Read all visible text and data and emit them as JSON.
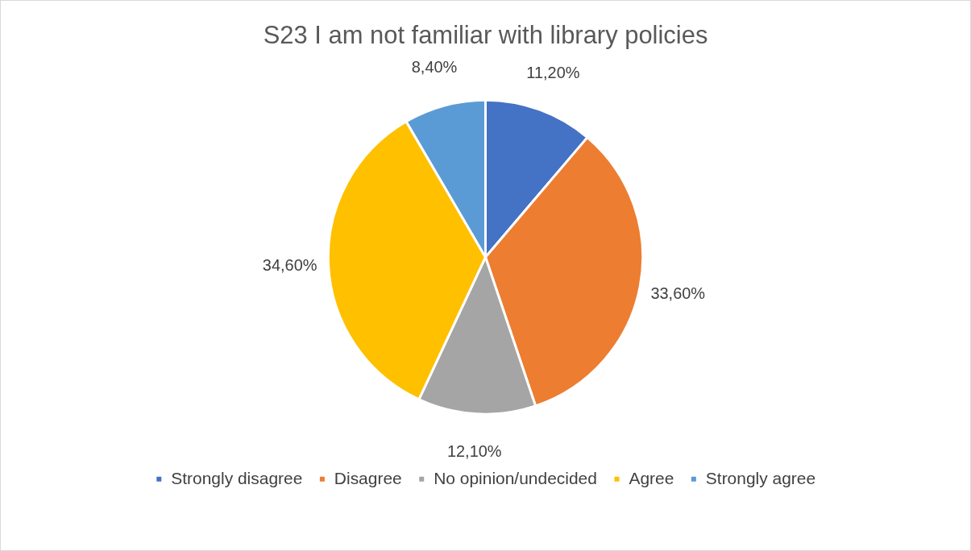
{
  "chart_data": {
    "type": "pie",
    "title": "S23 I am not familiar with library policies",
    "categories": [
      "Strongly disagree",
      "Disagree",
      "No opinion/undecided",
      "Agree",
      "Strongly agree"
    ],
    "values": [
      11.2,
      33.6,
      12.1,
      34.6,
      8.4
    ],
    "value_labels": [
      "11,20%",
      "33,60%",
      "12,10%",
      "34,60%",
      "8,40%"
    ],
    "colors": [
      "#4472c4",
      "#ed7d31",
      "#a5a5a5",
      "#ffc000",
      "#5b9bd5"
    ],
    "legend": "bottom"
  }
}
